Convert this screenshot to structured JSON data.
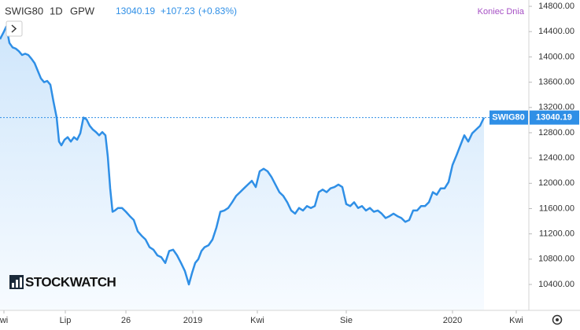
{
  "chart_data": {
    "type": "line",
    "symbol": "SWIG80",
    "interval": "1D",
    "exchange": "GPW",
    "change": "+107.23",
    "change_pct": "(+0.83%)",
    "session_label": "Koniec Dnia",
    "logo": "STOCKWATCH",
    "series": [
      {
        "name": "SWIG80",
        "color": "#2f8fe6",
        "x": [
          0,
          5,
          8,
          12,
          16,
          20,
          24,
          28,
          32,
          36,
          40,
          44,
          48,
          52,
          56,
          60,
          64,
          68,
          72,
          75,
          78,
          82,
          86,
          90,
          94,
          98,
          102,
          106,
          110,
          114,
          118,
          122,
          126,
          130,
          134,
          137,
          140,
          143,
          146,
          150,
          155,
          160,
          165,
          170,
          175,
          180,
          185,
          190,
          195,
          200,
          205,
          210,
          215,
          220,
          225,
          230,
          235,
          240,
          244,
          248,
          252,
          256,
          260,
          265,
          270,
          275,
          280,
          285,
          290,
          295,
          300,
          305,
          310,
          315,
          320,
          325,
          330,
          335,
          340,
          345,
          350,
          355,
          360,
          365,
          370,
          375,
          380,
          385,
          390,
          395,
          400,
          405,
          410,
          415,
          420,
          425,
          430,
          435,
          440,
          445,
          450,
          455,
          460,
          465,
          470,
          475,
          480,
          485,
          490,
          495,
          500,
          505,
          510,
          515,
          520,
          525,
          530,
          535,
          540,
          545,
          550,
          555,
          560,
          565,
          570,
          575,
          580,
          585,
          590,
          595,
          600,
          605,
          610,
          615
        ],
        "values": [
          14280,
          14400,
          14480,
          14220,
          14150,
          14130,
          14090,
          14030,
          14050,
          14030,
          13970,
          13900,
          13780,
          13660,
          13600,
          13620,
          13560,
          13290,
          13040,
          12660,
          12600,
          12690,
          12730,
          12660,
          12730,
          12690,
          12790,
          13040,
          13010,
          12910,
          12850,
          12810,
          12760,
          12810,
          12760,
          12420,
          11920,
          11550,
          11570,
          11610,
          11610,
          11550,
          11480,
          11420,
          11240,
          11170,
          11110,
          10990,
          10950,
          10860,
          10830,
          10740,
          10930,
          10950,
          10860,
          10740,
          10610,
          10400,
          10580,
          10740,
          10800,
          10930,
          10990,
          11020,
          11110,
          11300,
          11550,
          11570,
          11610,
          11700,
          11800,
          11860,
          11920,
          11980,
          12040,
          11940,
          12190,
          12230,
          12190,
          12100,
          11980,
          11860,
          11800,
          11700,
          11570,
          11520,
          11610,
          11570,
          11640,
          11610,
          11640,
          11860,
          11900,
          11860,
          11920,
          11940,
          11980,
          11940,
          11670,
          11640,
          11700,
          11610,
          11640,
          11570,
          11610,
          11550,
          11570,
          11520,
          11450,
          11480,
          11520,
          11480,
          11450,
          11390,
          11420,
          11570,
          11570,
          11640,
          11640,
          11700,
          11860,
          11820,
          11920,
          11920,
          12020,
          12290,
          12440,
          12600,
          12760,
          12660,
          12790,
          12850,
          12910,
          13040.19
        ]
      }
    ],
    "xlim": [
      0,
      670
    ],
    "xticks": [
      {
        "value": 5,
        "label": "wi"
      },
      {
        "value": 83,
        "label": "Lip"
      },
      {
        "value": 160,
        "label": "26"
      },
      {
        "value": 245,
        "label": "2019"
      },
      {
        "value": 327,
        "label": "Kwi"
      },
      {
        "value": 440,
        "label": "Sie"
      },
      {
        "value": 575,
        "label": "2020"
      },
      {
        "value": 656,
        "label": "Kwi"
      }
    ],
    "ylim": [
      9990,
      14900
    ],
    "yticks": [
      {
        "value": 10400,
        "label": "10400.00"
      },
      {
        "value": 10800,
        "label": "10800.00"
      },
      {
        "value": 11200,
        "label": "11200.00"
      },
      {
        "value": 11600,
        "label": "11600.00"
      },
      {
        "value": 12000,
        "label": "12000.00"
      },
      {
        "value": 12400,
        "label": "12400.00"
      },
      {
        "value": 12800,
        "label": "12800.00"
      },
      {
        "value": 13200,
        "label": "13200.00"
      },
      {
        "value": 13600,
        "label": "13600.00"
      },
      {
        "value": 14000,
        "label": "14000.00"
      },
      {
        "value": 14400,
        "label": "14400.00"
      },
      {
        "value": 14800,
        "label": "14800.00"
      }
    ],
    "grid": false
  }
}
